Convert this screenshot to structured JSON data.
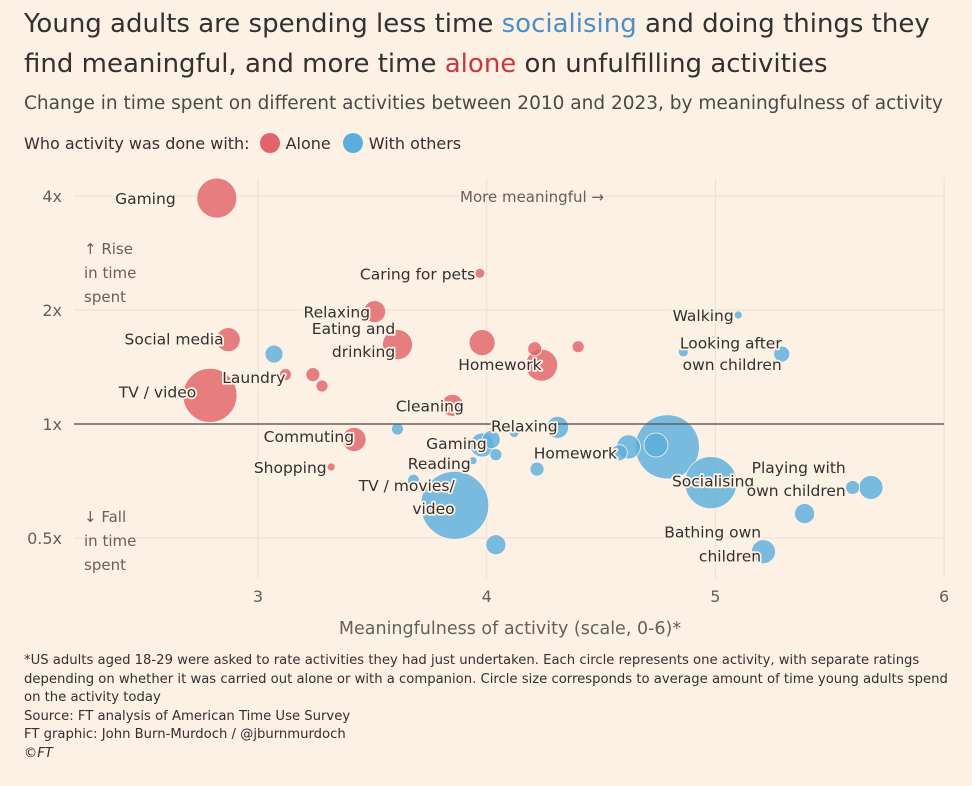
{
  "title": {
    "part1": "Young adults are spending less time ",
    "highlight1": "socialising",
    "part2": " and doing things they find meaningful, and more time ",
    "highlight2": "alone",
    "part3": " on unfulfilling activities"
  },
  "subtitle": "Change in time spent on different activities between 2010 and 2023, by meaningfulness of activity",
  "legend": {
    "label": "Who activity was done with:",
    "alone": "Alone",
    "with_others": "With others"
  },
  "colors": {
    "alone": "#e06469",
    "with_others": "#5aaedc",
    "background": "#fdf1e6",
    "grid": "#ece0d4",
    "baseline": "#66605c"
  },
  "chart_data": {
    "type": "scatter",
    "title": "Change in time spent on different activities between 2010 and 2023, by meaningfulness of activity",
    "xlabel": "Meaningfulness of activity (scale, 0-6)*",
    "ylabel": "",
    "xlim": [
      2.2,
      6
    ],
    "y_scale": "log",
    "ylim": [
      0.4,
      4.6
    ],
    "x_ticks": [
      3,
      4,
      5,
      6
    ],
    "y_ticks": [
      {
        "value": 4,
        "label": "4x"
      },
      {
        "value": 2,
        "label": "2x"
      },
      {
        "value": 1,
        "label": "1x"
      },
      {
        "value": 0.5,
        "label": "0.5x"
      }
    ],
    "grid": true,
    "annotations": {
      "more_meaningful": "More meaningful →",
      "rise": [
        "↑ Rise",
        "in time",
        "spent"
      ],
      "fall": [
        "↓ Fall",
        "in time",
        "spent"
      ]
    },
    "series": [
      {
        "name": "Alone",
        "points": [
          {
            "label": "Gaming",
            "x": 2.82,
            "y": 3.95,
            "size": 20
          },
          {
            "label": "Caring for pets",
            "x": 3.97,
            "y": 2.5,
            "size": 5
          },
          {
            "label": "Relaxing",
            "x": 3.51,
            "y": 1.98,
            "size": 11
          },
          {
            "label": "Social media",
            "x": 2.87,
            "y": 1.67,
            "size": 12
          },
          {
            "label": "Eating and drinking",
            "x": 3.61,
            "y": 1.62,
            "size": 15
          },
          {
            "label": "",
            "x": 3.98,
            "y": 1.64,
            "size": 13
          },
          {
            "label": "",
            "x": 4.21,
            "y": 1.58,
            "size": 7
          },
          {
            "label": "",
            "x": 4.4,
            "y": 1.6,
            "size": 6
          },
          {
            "label": "Homework",
            "x": 4.24,
            "y": 1.43,
            "size": 16
          },
          {
            "label": "Laundry",
            "x": 3.12,
            "y": 1.35,
            "size": 6
          },
          {
            "label": "",
            "x": 3.24,
            "y": 1.35,
            "size": 7
          },
          {
            "label": "",
            "x": 3.28,
            "y": 1.26,
            "size": 6
          },
          {
            "label": "TV / video",
            "x": 2.79,
            "y": 1.19,
            "size": 27
          },
          {
            "label": "Cleaning",
            "x": 3.85,
            "y": 1.12,
            "size": 11
          },
          {
            "label": "Commuting",
            "x": 3.42,
            "y": 0.91,
            "size": 12
          },
          {
            "label": "Shopping",
            "x": 3.32,
            "y": 0.77,
            "size": 4
          }
        ]
      },
      {
        "name": "With others",
        "points": [
          {
            "label": "Walking",
            "x": 5.1,
            "y": 1.94,
            "size": 4
          },
          {
            "label": "Looking after own children",
            "x": 5.29,
            "y": 1.53,
            "size": 8
          },
          {
            "label": "",
            "x": 4.86,
            "y": 1.55,
            "size": 5
          },
          {
            "label": "",
            "x": 3.07,
            "y": 1.53,
            "size": 9
          },
          {
            "label": "Relaxing",
            "x": 4.31,
            "y": 0.98,
            "size": 11
          },
          {
            "label": "",
            "x": 4.12,
            "y": 0.95,
            "size": 5
          },
          {
            "label": "",
            "x": 3.61,
            "y": 0.97,
            "size": 6
          },
          {
            "label": "Gaming",
            "x": 3.98,
            "y": 0.88,
            "size": 12
          },
          {
            "label": "",
            "x": 4.02,
            "y": 0.91,
            "size": 9
          },
          {
            "label": "Homework",
            "x": 4.62,
            "y": 0.87,
            "size": 12
          },
          {
            "label": "",
            "x": 4.58,
            "y": 0.84,
            "size": 8
          },
          {
            "label": "Socialising",
            "x": 4.79,
            "y": 0.87,
            "size": 32
          },
          {
            "label": "",
            "x": 4.74,
            "y": 0.88,
            "size": 12
          },
          {
            "label": "",
            "x": 4.04,
            "y": 0.83,
            "size": 6
          },
          {
            "label": "Reading",
            "x": 3.94,
            "y": 0.8,
            "size": 4
          },
          {
            "label": "",
            "x": 4.22,
            "y": 0.76,
            "size": 7
          },
          {
            "label": "TV / movies/ video",
            "x": 3.86,
            "y": 0.61,
            "size": 34
          },
          {
            "label": "",
            "x": 3.68,
            "y": 0.71,
            "size": 6
          },
          {
            "label": "Socialising_main",
            "x": 4.98,
            "y": 0.7,
            "size": 26
          },
          {
            "label": "",
            "x": 4.04,
            "y": 0.48,
            "size": 10
          },
          {
            "label": "Playing with own children",
            "x": 5.68,
            "y": 0.68,
            "size": 12
          },
          {
            "label": "",
            "x": 5.6,
            "y": 0.68,
            "size": 7
          },
          {
            "label": "",
            "x": 5.39,
            "y": 0.58,
            "size": 10
          },
          {
            "label": "Bathing own children",
            "x": 5.21,
            "y": 0.46,
            "size": 12
          }
        ]
      }
    ],
    "labels": [
      {
        "text": "Gaming",
        "x": 2.64,
        "y": 3.95,
        "anchor": "end"
      },
      {
        "text": "Caring for pets",
        "x": 3.95,
        "y": 2.5,
        "anchor": "end"
      },
      {
        "text": "Relaxing",
        "x": 3.49,
        "y": 1.98,
        "anchor": "end"
      },
      {
        "text": "Social media",
        "x": 2.85,
        "y": 1.68,
        "anchor": "end"
      },
      {
        "text": "Eating and",
        "x": 3.6,
        "y": 1.79,
        "anchor": "end"
      },
      {
        "text": "drinking",
        "x": 3.6,
        "y": 1.56,
        "anchor": "end"
      },
      {
        "text": "Homework",
        "x": 4.24,
        "y": 1.44,
        "anchor": "end"
      },
      {
        "text": "Laundry",
        "x": 3.12,
        "y": 1.33,
        "anchor": "end"
      },
      {
        "text": "TV / video",
        "x": 2.73,
        "y": 1.22,
        "anchor": "end"
      },
      {
        "text": "Cleaning",
        "x": 3.9,
        "y": 1.12,
        "anchor": "end"
      },
      {
        "text": "Commuting",
        "x": 3.42,
        "y": 0.93,
        "anchor": "end"
      },
      {
        "text": "Shopping",
        "x": 3.3,
        "y": 0.77,
        "anchor": "end"
      },
      {
        "text": "Walking",
        "x": 5.08,
        "y": 1.94,
        "anchor": "end"
      },
      {
        "text": "Looking after",
        "x": 5.29,
        "y": 1.64,
        "anchor": "end"
      },
      {
        "text": "own children",
        "x": 5.29,
        "y": 1.44,
        "anchor": "end"
      },
      {
        "text": "Relaxing",
        "x": 4.31,
        "y": 0.99,
        "anchor": "end"
      },
      {
        "text": "Gaming",
        "x": 4.0,
        "y": 0.89,
        "anchor": "end"
      },
      {
        "text": "Homework",
        "x": 4.57,
        "y": 0.84,
        "anchor": "end"
      },
      {
        "text": "Socialising",
        "x": 4.81,
        "y": 0.71,
        "anchor": "start"
      },
      {
        "text": "Reading",
        "x": 3.93,
        "y": 0.79,
        "anchor": "end"
      },
      {
        "text": "TV / movies/",
        "x": 3.86,
        "y": 0.69,
        "anchor": "end"
      },
      {
        "text": "video",
        "x": 3.86,
        "y": 0.6,
        "anchor": "end"
      },
      {
        "text": "Playing with",
        "x": 5.57,
        "y": 0.77,
        "anchor": "end"
      },
      {
        "text": "own children",
        "x": 5.57,
        "y": 0.67,
        "anchor": "end"
      },
      {
        "text": "Bathing own",
        "x": 5.2,
        "y": 0.52,
        "anchor": "end"
      },
      {
        "text": "children",
        "x": 5.2,
        "y": 0.45,
        "anchor": "end"
      }
    ]
  },
  "footnote": {
    "line1": "*US adults aged 18-29 were asked to rate activities they had just undertaken. Each circle represents one activity, with separate ratings depending on whether it was carried out alone or with a companion. Circle size corresponds to average amount of time young adults spend on the activity today",
    "source": "Source: FT analysis of American Time Use Survey",
    "credit": "FT graphic: John Burn-Murdoch / @jburnmurdoch",
    "copyright": "©FT"
  }
}
